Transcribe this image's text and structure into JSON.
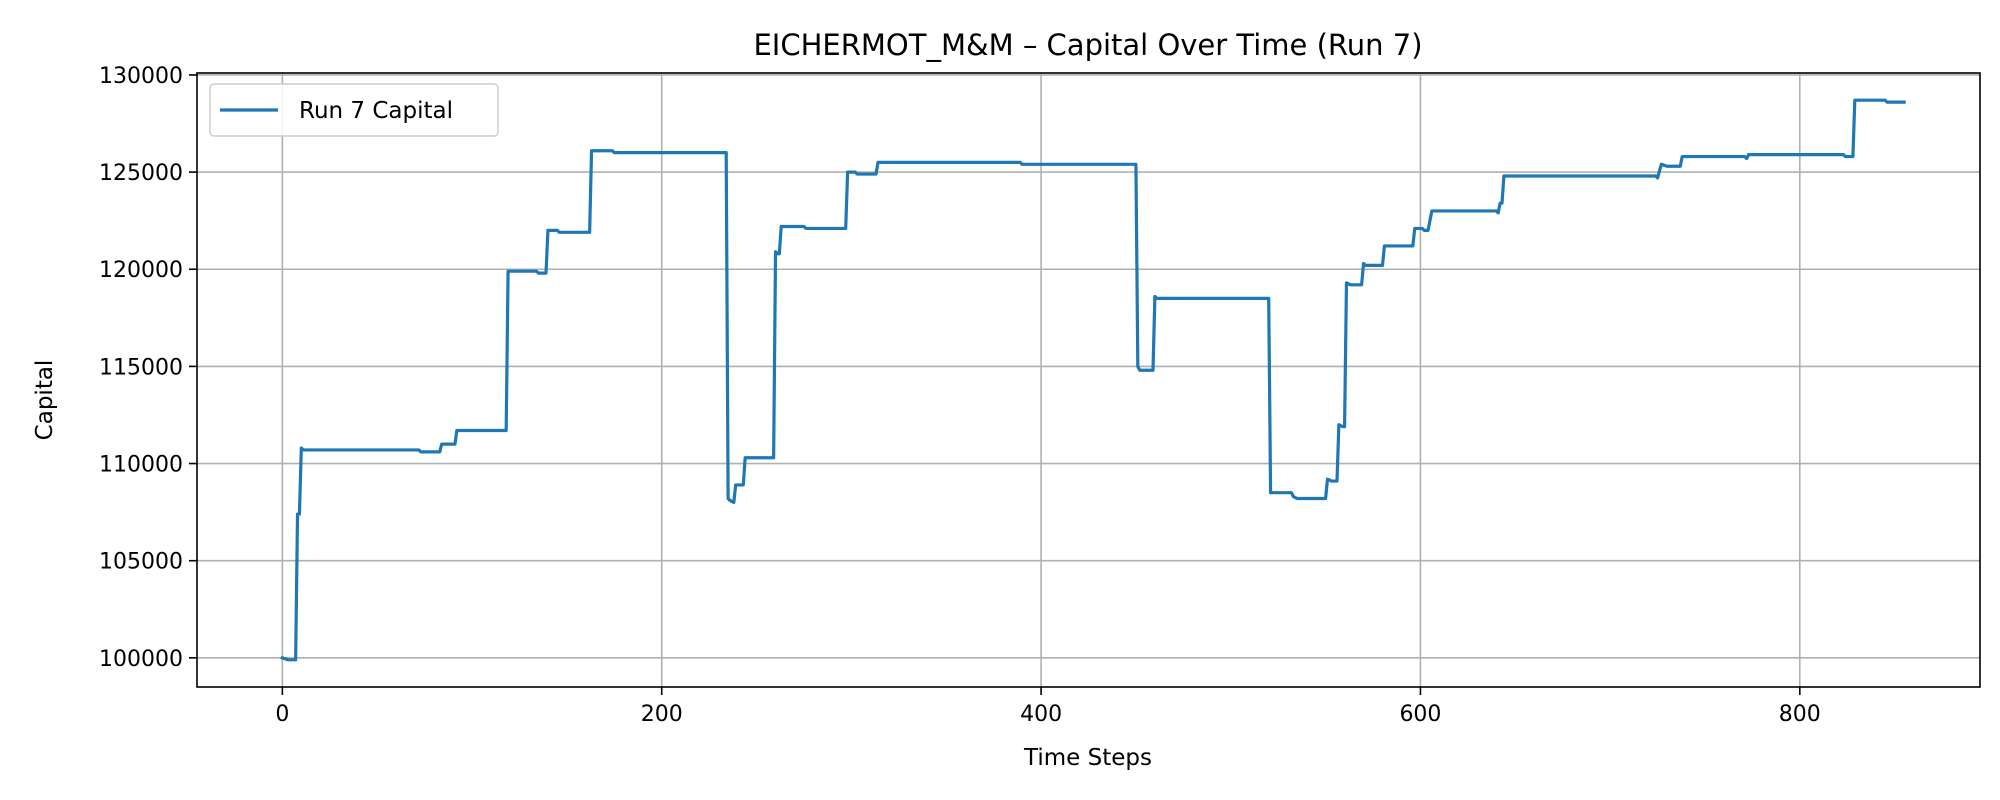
{
  "chart_data": {
    "type": "line",
    "title": "EICHERMOT_M&M – Capital Over Time (Run 7)",
    "xlabel": "Time Steps",
    "ylabel": "Capital",
    "xlim": [
      -45,
      895
    ],
    "ylim": [
      98500,
      130100
    ],
    "x_ticks": [
      0,
      200,
      400,
      600,
      800
    ],
    "y_ticks": [
      100000,
      105000,
      110000,
      115000,
      120000,
      125000,
      130000
    ],
    "grid": true,
    "legend_position": "top-left",
    "color": "#1f77b4",
    "series": [
      {
        "name": "Run 7 Capital",
        "points": [
          [
            0,
            100000
          ],
          [
            3,
            99900
          ],
          [
            7,
            99900
          ],
          [
            8,
            107400
          ],
          [
            9,
            107400
          ],
          [
            10,
            110800
          ],
          [
            11,
            110700
          ],
          [
            72,
            110700
          ],
          [
            73,
            110600
          ],
          [
            83,
            110600
          ],
          [
            84,
            111000
          ],
          [
            91,
            111000
          ],
          [
            92,
            111700
          ],
          [
            118,
            111700
          ],
          [
            119,
            119900
          ],
          [
            134,
            119900
          ],
          [
            135,
            119800
          ],
          [
            139,
            119800
          ],
          [
            140,
            122000
          ],
          [
            145,
            122000
          ],
          [
            146,
            121900
          ],
          [
            162,
            121900
          ],
          [
            163,
            126100
          ],
          [
            174,
            126100
          ],
          [
            175,
            126000
          ],
          [
            234,
            126000
          ],
          [
            235,
            108200
          ],
          [
            236,
            108100
          ],
          [
            238,
            108000
          ],
          [
            239,
            108900
          ],
          [
            243,
            108900
          ],
          [
            244,
            110300
          ],
          [
            259,
            110300
          ],
          [
            260,
            120900
          ],
          [
            261,
            120800
          ],
          [
            262,
            120800
          ],
          [
            263,
            122200
          ],
          [
            275,
            122200
          ],
          [
            276,
            122100
          ],
          [
            297,
            122100
          ],
          [
            298,
            125000
          ],
          [
            302,
            125000
          ],
          [
            303,
            124900
          ],
          [
            313,
            124900
          ],
          [
            314,
            125500
          ],
          [
            389,
            125500
          ],
          [
            390,
            125400
          ],
          [
            450,
            125400
          ],
          [
            451,
            115000
          ],
          [
            452,
            114800
          ],
          [
            459,
            114800
          ],
          [
            460,
            118600
          ],
          [
            461,
            118500
          ],
          [
            520,
            118500
          ],
          [
            521,
            108500
          ],
          [
            532,
            108500
          ],
          [
            533,
            108300
          ],
          [
            535,
            108200
          ],
          [
            550,
            108200
          ],
          [
            551,
            109200
          ],
          [
            553,
            109100
          ],
          [
            556,
            109100
          ],
          [
            557,
            112000
          ],
          [
            559,
            111900
          ],
          [
            560,
            111900
          ],
          [
            561,
            119300
          ],
          [
            563,
            119200
          ],
          [
            569,
            119200
          ],
          [
            570,
            120300
          ],
          [
            571,
            120200
          ],
          [
            580,
            120200
          ],
          [
            581,
            121200
          ],
          [
            596,
            121200
          ],
          [
            597,
            122100
          ],
          [
            601,
            122100
          ],
          [
            602,
            122000
          ],
          [
            604,
            122000
          ],
          [
            605,
            122500
          ],
          [
            606,
            123000
          ],
          [
            640,
            123000
          ],
          [
            641,
            122900
          ],
          [
            642,
            123400
          ],
          [
            643,
            123400
          ],
          [
            644,
            124800
          ],
          [
            724,
            124800
          ],
          [
            725,
            124700
          ],
          [
            727,
            125400
          ],
          [
            730,
            125300
          ],
          [
            737,
            125300
          ],
          [
            738,
            125800
          ],
          [
            771,
            125800
          ],
          [
            772,
            125700
          ],
          [
            773,
            125900
          ],
          [
            823,
            125900
          ],
          [
            824,
            125800
          ],
          [
            828,
            125800
          ],
          [
            829,
            128700
          ],
          [
            845,
            128700
          ],
          [
            846,
            128600
          ],
          [
            855,
            128600
          ]
        ]
      }
    ]
  }
}
